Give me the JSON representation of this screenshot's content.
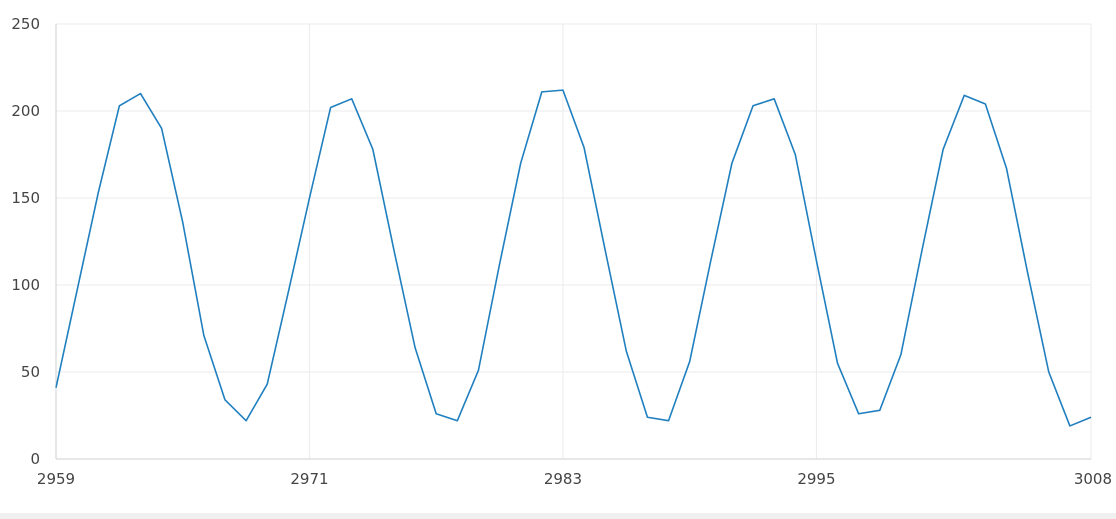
{
  "chart_data": {
    "type": "line",
    "title": "",
    "xlabel": "",
    "ylabel": "",
    "xlim": [
      2959,
      3008
    ],
    "ylim": [
      0,
      250
    ],
    "x_ticks": [
      2959,
      2971,
      2983,
      2995,
      3008
    ],
    "y_ticks": [
      0,
      50,
      100,
      150,
      200,
      250
    ],
    "grid": true,
    "legend": "none",
    "series": [
      {
        "color": "#1f7fbf",
        "x": [
          2959,
          2960,
          2961,
          2962,
          2963,
          2964,
          2965,
          2966,
          2967,
          2968,
          2969,
          2970,
          2971,
          2972,
          2973,
          2974,
          2975,
          2976,
          2977,
          2978,
          2979,
          2980,
          2981,
          2982,
          2983,
          2984,
          2985,
          2986,
          2987,
          2988,
          2989,
          2990,
          2991,
          2992,
          2993,
          2994,
          2995,
          2996,
          2997,
          2998,
          2999,
          3000,
          3001,
          3002,
          3003,
          3004,
          3005,
          3006,
          3007,
          3008
        ],
        "y": [
          41,
          97,
          153,
          203,
          210,
          190,
          136,
          71,
          34,
          22,
          43,
          96,
          150,
          202,
          207,
          178,
          120,
          64,
          26,
          22,
          51,
          112,
          170,
          211,
          212,
          179,
          120,
          62,
          24,
          22,
          56,
          114,
          170,
          203,
          207,
          175,
          114,
          55,
          26,
          28,
          60,
          120,
          178,
          209,
          204,
          167,
          107,
          50,
          19,
          24
        ]
      }
    ]
  }
}
